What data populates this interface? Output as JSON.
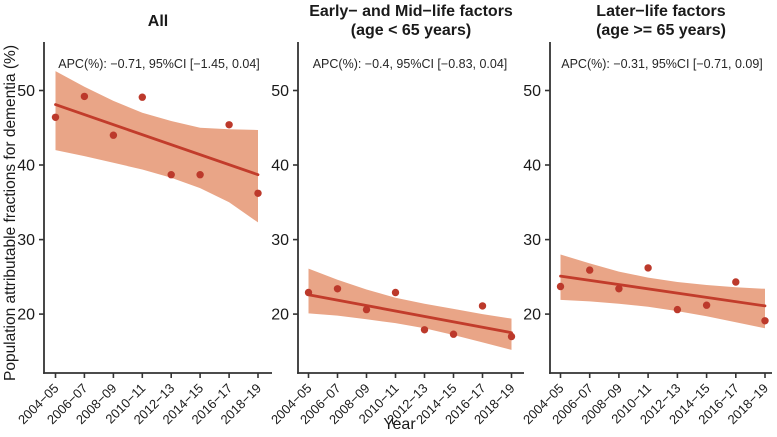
{
  "figure": {
    "y_axis_label": "Population attributable fractions for dementia (%)",
    "x_axis_label": "Year"
  },
  "colors": {
    "band": "#e9a587",
    "line": "#c23c2b",
    "point": "#bc392b",
    "axis": "#333333",
    "tick_text": "#1a1a1a"
  },
  "chart_data": [
    {
      "type": "scatter",
      "title": "All",
      "title_lines": [
        "All"
      ],
      "annotation": "APC(%): −0.71, 95%CI [−1.45, 0.04]",
      "categories": [
        "2004−05",
        "2006−07",
        "2008−09",
        "2010−11",
        "2012−13",
        "2014−15",
        "2016−17",
        "2018−19"
      ],
      "points": [
        46.4,
        49.2,
        44.0,
        49.1,
        38.7,
        38.7,
        45.4,
        36.2
      ],
      "trend": [
        48.1,
        38.7
      ],
      "band_upper": [
        52.6,
        50.5,
        48.6,
        47.0,
        45.9,
        45.0,
        44.8,
        44.7
      ],
      "band_lower": [
        42.0,
        41.2,
        40.3,
        39.4,
        38.3,
        36.9,
        35.0,
        32.3
      ],
      "yticks": [
        20,
        30,
        40,
        50
      ],
      "ylim": [
        12.1,
        56.5
      ],
      "grid": false,
      "legend": false
    },
    {
      "type": "scatter",
      "title": "Early− and Mid−life factors (age < 65 years)",
      "title_lines": [
        "Early− and Mid−life factors",
        "(age < 65 years)"
      ],
      "annotation": "APC(%): −0.4, 95%CI [−0.83, 0.04]",
      "categories": [
        "2004−05",
        "2006−07",
        "2008−09",
        "2010−11",
        "2012−13",
        "2014−15",
        "2016−17",
        "2018−19"
      ],
      "points": [
        22.9,
        23.4,
        20.6,
        22.9,
        17.9,
        17.3,
        21.1,
        17.0
      ],
      "trend": [
        22.6,
        17.5
      ],
      "band_upper": [
        26.1,
        24.6,
        23.3,
        22.2,
        21.4,
        20.7,
        20.0,
        19.4
      ],
      "band_lower": [
        20.1,
        19.8,
        19.3,
        18.8,
        18.1,
        17.2,
        16.2,
        15.2
      ],
      "yticks": [
        20,
        30,
        40,
        50
      ],
      "ylim": [
        12.1,
        56.5
      ],
      "grid": false,
      "legend": false
    },
    {
      "type": "scatter",
      "title": "Later−life factors (age >= 65 years)",
      "title_lines": [
        "Later−life factors",
        "(age >= 65 years)"
      ],
      "annotation": "APC(%): −0.31, 95%CI [−0.71, 0.09]",
      "categories": [
        "2004−05",
        "2006−07",
        "2008−09",
        "2010−11",
        "2012−13",
        "2014−15",
        "2016−17",
        "2018−19"
      ],
      "points": [
        23.7,
        25.9,
        23.4,
        26.2,
        20.6,
        21.2,
        24.3,
        19.1
      ],
      "trend": [
        25.1,
        21.1
      ],
      "band_upper": [
        28.0,
        26.8,
        25.7,
        24.9,
        24.3,
        23.9,
        23.6,
        23.4
      ],
      "band_lower": [
        21.9,
        21.7,
        21.4,
        21.0,
        20.4,
        19.7,
        18.9,
        18.1
      ],
      "yticks": [
        20,
        30,
        40,
        50
      ],
      "ylim": [
        12.1,
        56.5
      ],
      "grid": false,
      "legend": false
    }
  ]
}
